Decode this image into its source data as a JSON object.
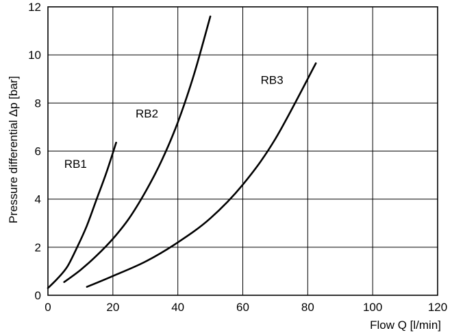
{
  "chart_data": {
    "type": "line",
    "xlabel": "Flow Q [l/min]",
    "ylabel": "Pressure differential Δp [bar]",
    "xlim": [
      0,
      120
    ],
    "ylim": [
      0,
      12
    ],
    "xticks": [
      0,
      20,
      40,
      60,
      80,
      100,
      120
    ],
    "yticks": [
      0,
      2,
      4,
      6,
      8,
      10,
      12
    ],
    "grid": true,
    "series": [
      {
        "name": "RB1",
        "x": [
          0,
          3,
          6,
          9,
          12,
          15,
          18,
          21
        ],
        "y": [
          0.3,
          0.7,
          1.2,
          2.0,
          2.9,
          4.0,
          5.1,
          6.35
        ]
      },
      {
        "name": "RB2",
        "x": [
          5,
          10,
          15,
          20,
          25,
          30,
          35,
          40,
          45,
          50
        ],
        "y": [
          0.55,
          1.05,
          1.65,
          2.35,
          3.2,
          4.3,
          5.6,
          7.2,
          9.2,
          11.6
        ]
      },
      {
        "name": "RB3",
        "x": [
          12,
          20,
          30,
          40,
          50,
          60,
          70,
          82.5
        ],
        "y": [
          0.35,
          0.8,
          1.4,
          2.2,
          3.2,
          4.6,
          6.5,
          9.65
        ]
      }
    ]
  }
}
